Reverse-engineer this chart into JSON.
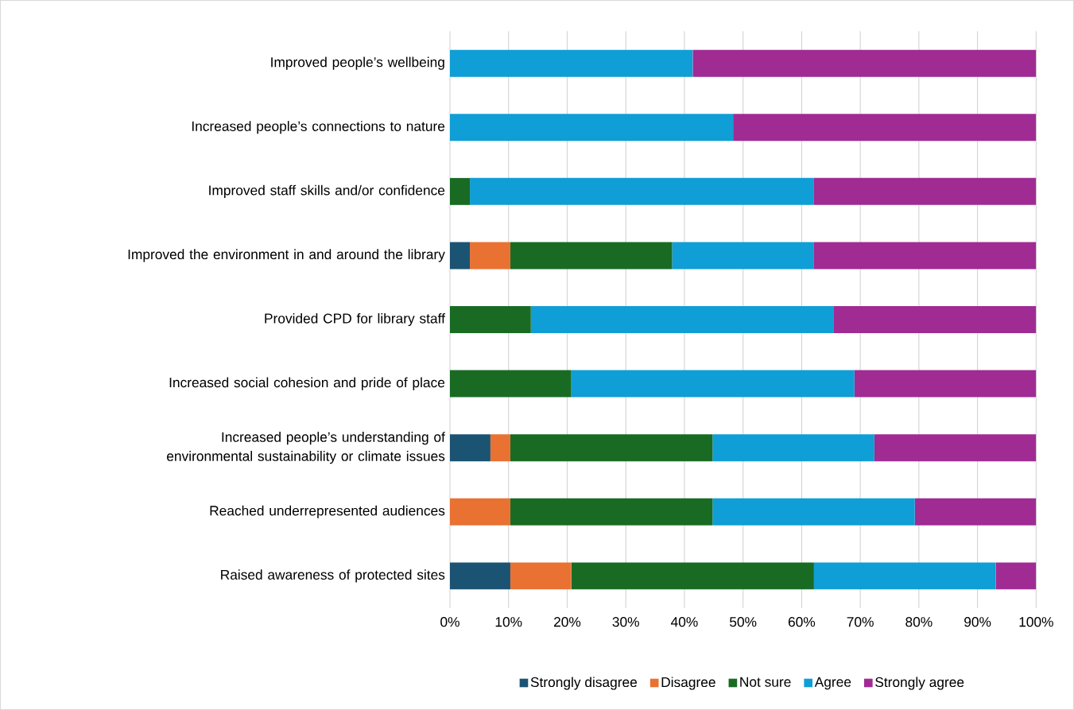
{
  "chart_data": {
    "type": "bar",
    "orientation": "horizontal",
    "stacked": true,
    "categories": [
      "Improved people’s wellbeing",
      "Increased people’s connections to nature",
      "Improved staff skills and/or confidence",
      "Improved the environment in and around the library",
      "Provided CPD for library staff",
      "Increased social cohesion and pride of place",
      "Increased people’s understanding of environmental sustainability or climate issues",
      "Reached underrepresented audiences",
      "Raised awareness of protected sites"
    ],
    "series": [
      {
        "name": "Strongly disagree",
        "color": "#1b5373",
        "values": [
          0,
          0,
          0,
          3.4,
          0,
          0,
          6.9,
          0,
          10.3
        ]
      },
      {
        "name": "Disagree",
        "color": "#e97132",
        "values": [
          0,
          0,
          0,
          6.9,
          0,
          0,
          3.4,
          10.3,
          10.4
        ]
      },
      {
        "name": "Not sure",
        "color": "#196b24",
        "values": [
          0,
          0,
          3.4,
          27.6,
          13.8,
          20.7,
          34.5,
          34.5,
          41.4
        ]
      },
      {
        "name": "Agree",
        "color": "#0f9ed5",
        "values": [
          41.4,
          48.3,
          58.7,
          24.2,
          51.7,
          48.3,
          27.6,
          34.5,
          31.0
        ]
      },
      {
        "name": "Strongly agree",
        "color": "#a02b93",
        "values": [
          58.6,
          51.7,
          37.9,
          37.9,
          34.5,
          31.0,
          27.6,
          20.7,
          6.9
        ]
      }
    ],
    "xlim": [
      0,
      100
    ],
    "xticks": [
      {
        "value": 0,
        "label": "0%"
      },
      {
        "value": 10,
        "label": "10%"
      },
      {
        "value": 20,
        "label": "20%"
      },
      {
        "value": 30,
        "label": "30%"
      },
      {
        "value": 40,
        "label": "40%"
      },
      {
        "value": 50,
        "label": "50%"
      },
      {
        "value": 60,
        "label": "60%"
      },
      {
        "value": 70,
        "label": "70%"
      },
      {
        "value": 80,
        "label": "80%"
      },
      {
        "value": 90,
        "label": "90%"
      },
      {
        "value": 100,
        "label": "100%"
      }
    ],
    "grid": "x",
    "legend": "bottom"
  }
}
